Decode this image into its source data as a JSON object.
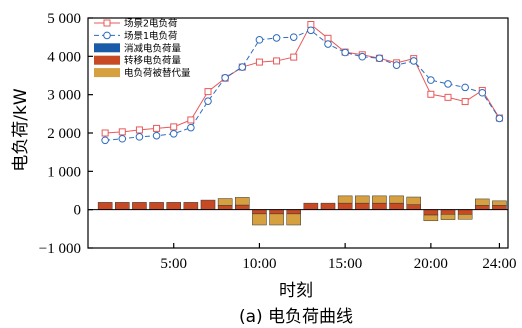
{
  "chart_data": {
    "type": "line",
    "caption": "(a) 电负荷曲线",
    "xlabel": "时刻",
    "ylabel": "电负荷/kW",
    "xlim": [
      0,
      24.5
    ],
    "ylim": [
      -1000,
      5000
    ],
    "xticks": [
      5,
      10,
      15,
      20,
      24
    ],
    "xtick_labels": [
      "5:00",
      "10:00",
      "15:00",
      "20:00",
      "24:00"
    ],
    "yticks": [
      -1000,
      0,
      1000,
      2000,
      3000,
      4000,
      5000
    ],
    "ytick_labels": [
      "−1 000",
      "0",
      "1 000",
      "2 000",
      "3 000",
      "4 000",
      "5 000"
    ],
    "x": [
      1,
      2,
      3,
      4,
      5,
      6,
      7,
      8,
      9,
      10,
      11,
      12,
      13,
      14,
      15,
      16,
      17,
      18,
      19,
      20,
      21,
      22,
      23,
      24
    ],
    "series": [
      {
        "name": "场景2电负荷",
        "kind": "line",
        "color": "#e8595b",
        "marker": "square",
        "values": [
          2000,
          2030,
          2080,
          2120,
          2160,
          2340,
          3080,
          3430,
          3720,
          3850,
          3880,
          3980,
          4830,
          4470,
          4110,
          4040,
          3950,
          3830,
          3940,
          3010,
          2930,
          2820,
          3110,
          2390
        ]
      },
      {
        "name": "场景1电负荷",
        "kind": "line",
        "color": "#2d6cbf",
        "marker": "circle",
        "values": [
          1810,
          1850,
          1900,
          1930,
          1980,
          2140,
          2830,
          3440,
          3720,
          4430,
          4480,
          4500,
          4680,
          4320,
          4100,
          3990,
          3950,
          3770,
          3880,
          3380,
          3280,
          3190,
          3050,
          2380
        ]
      },
      {
        "name": "消减电负荷量",
        "kind": "bar",
        "color": "#1a5ba8",
        "values": [
          0,
          0,
          0,
          0,
          0,
          0,
          0,
          0,
          0,
          0,
          0,
          0,
          0,
          0,
          0,
          0,
          0,
          0,
          0,
          0,
          0,
          0,
          0,
          0
        ]
      },
      {
        "name": "转移电负荷量",
        "kind": "bar",
        "color": "#c84a25",
        "values": [
          190,
          190,
          190,
          190,
          190,
          190,
          250,
          110,
          120,
          -110,
          -110,
          -110,
          170,
          170,
          170,
          170,
          170,
          170,
          130,
          -140,
          -120,
          -120,
          110,
          110
        ]
      },
      {
        "name": "电负荷被替代量",
        "kind": "bar",
        "color": "#d6a040",
        "values": [
          0,
          0,
          0,
          0,
          0,
          0,
          0,
          180,
          200,
          -290,
          -290,
          -290,
          0,
          0,
          190,
          190,
          190,
          190,
          200,
          -150,
          -140,
          -130,
          170,
          120
        ]
      }
    ],
    "legend": "top-left",
    "grid": false
  }
}
